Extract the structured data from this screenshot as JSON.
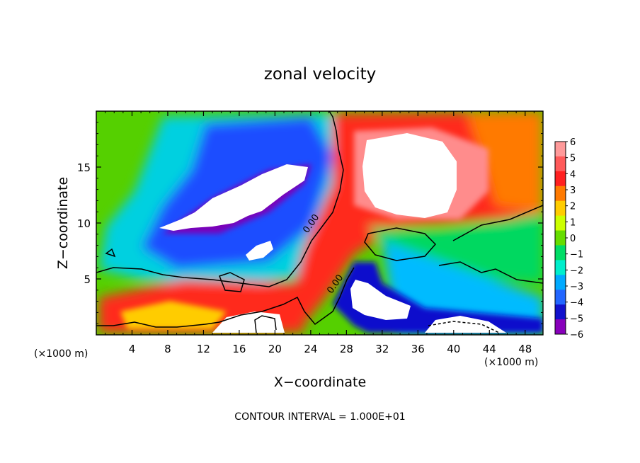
{
  "chart_data": {
    "type": "heatmap",
    "title": "zonal velocity",
    "xlabel": "X−coordinate",
    "ylabel": "Z−coordinate",
    "x_unit_left": "(×1000 m)",
    "x_unit_right": "(×1000 m)",
    "xlim": [
      0,
      50
    ],
    "ylim": [
      0,
      20
    ],
    "x_ticks": [
      "4",
      "8",
      "12",
      "16",
      "20",
      "24",
      "28",
      "32",
      "36",
      "40",
      "44",
      "48"
    ],
    "x_tick_values": [
      4,
      8,
      12,
      16,
      20,
      24,
      28,
      32,
      36,
      40,
      44,
      48
    ],
    "y_ticks": [
      "5",
      "10",
      "15"
    ],
    "y_tick_values": [
      5,
      10,
      15
    ],
    "colorbar": {
      "labels": [
        "6",
        "5",
        "4",
        "3",
        "2",
        "1",
        "0",
        "−1",
        "−2",
        "−3",
        "−4",
        "−5",
        "−6"
      ],
      "values": [
        6,
        5,
        4,
        3,
        2,
        1,
        0,
        -1,
        -2,
        -3,
        -4,
        -5,
        -6
      ],
      "colors": [
        "#ff9a9a",
        "#ff5a5a",
        "#ff2020",
        "#ff7a00",
        "#ffcc00",
        "#ccff00",
        "#66dd00",
        "#00dd66",
        "#00eecc",
        "#00aaff",
        "#2266ff",
        "#1111cc",
        "#8800bb"
      ]
    },
    "contour_labels": [
      {
        "text": "0.00",
        "x": 24.3,
        "z": 9.8
      },
      {
        "text": "0.00",
        "x": 27.0,
        "z": 4.4
      }
    ],
    "footer": "CONTOUR INTERVAL = 1.000E+01"
  }
}
